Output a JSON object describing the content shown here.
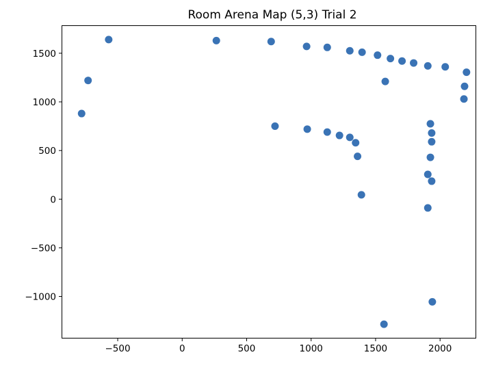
{
  "chart_data": {
    "type": "scatter",
    "title": "Room Arena Map (5,3) Trial 2",
    "xlabel": "",
    "ylabel": "",
    "xlim": [
      -930,
      2275
    ],
    "ylim": [
      -1425,
      1780
    ],
    "xticks": [
      -500,
      0,
      500,
      1000,
      1500,
      2000
    ],
    "yticks": [
      1500,
      1000,
      500,
      0,
      -500,
      -1000
    ],
    "xtick_labels": [
      "−500",
      "0",
      "500",
      "1000",
      "1500",
      "2000"
    ],
    "ytick_labels": [
      "1500",
      "1000",
      "500",
      "0",
      "−500",
      "−1000"
    ],
    "grid": false,
    "marker_color": "#3a73b5",
    "points": [
      [
        -570,
        1640
      ],
      [
        -730,
        1220
      ],
      [
        -780,
        880
      ],
      [
        265,
        1630
      ],
      [
        690,
        1620
      ],
      [
        965,
        1570
      ],
      [
        1125,
        1560
      ],
      [
        1300,
        1525
      ],
      [
        1395,
        1510
      ],
      [
        1515,
        1480
      ],
      [
        1615,
        1445
      ],
      [
        1705,
        1420
      ],
      [
        1795,
        1400
      ],
      [
        1905,
        1370
      ],
      [
        2040,
        1360
      ],
      [
        2205,
        1305
      ],
      [
        2190,
        1160
      ],
      [
        2185,
        1030
      ],
      [
        1575,
        1210
      ],
      [
        720,
        750
      ],
      [
        970,
        720
      ],
      [
        1125,
        690
      ],
      [
        1220,
        655
      ],
      [
        1300,
        635
      ],
      [
        1345,
        580
      ],
      [
        1360,
        440
      ],
      [
        1390,
        45
      ],
      [
        1925,
        775
      ],
      [
        1935,
        680
      ],
      [
        1935,
        590
      ],
      [
        1925,
        430
      ],
      [
        1905,
        255
      ],
      [
        1935,
        185
      ],
      [
        1905,
        -90
      ],
      [
        1940,
        -1055
      ],
      [
        1565,
        -1285
      ]
    ]
  }
}
